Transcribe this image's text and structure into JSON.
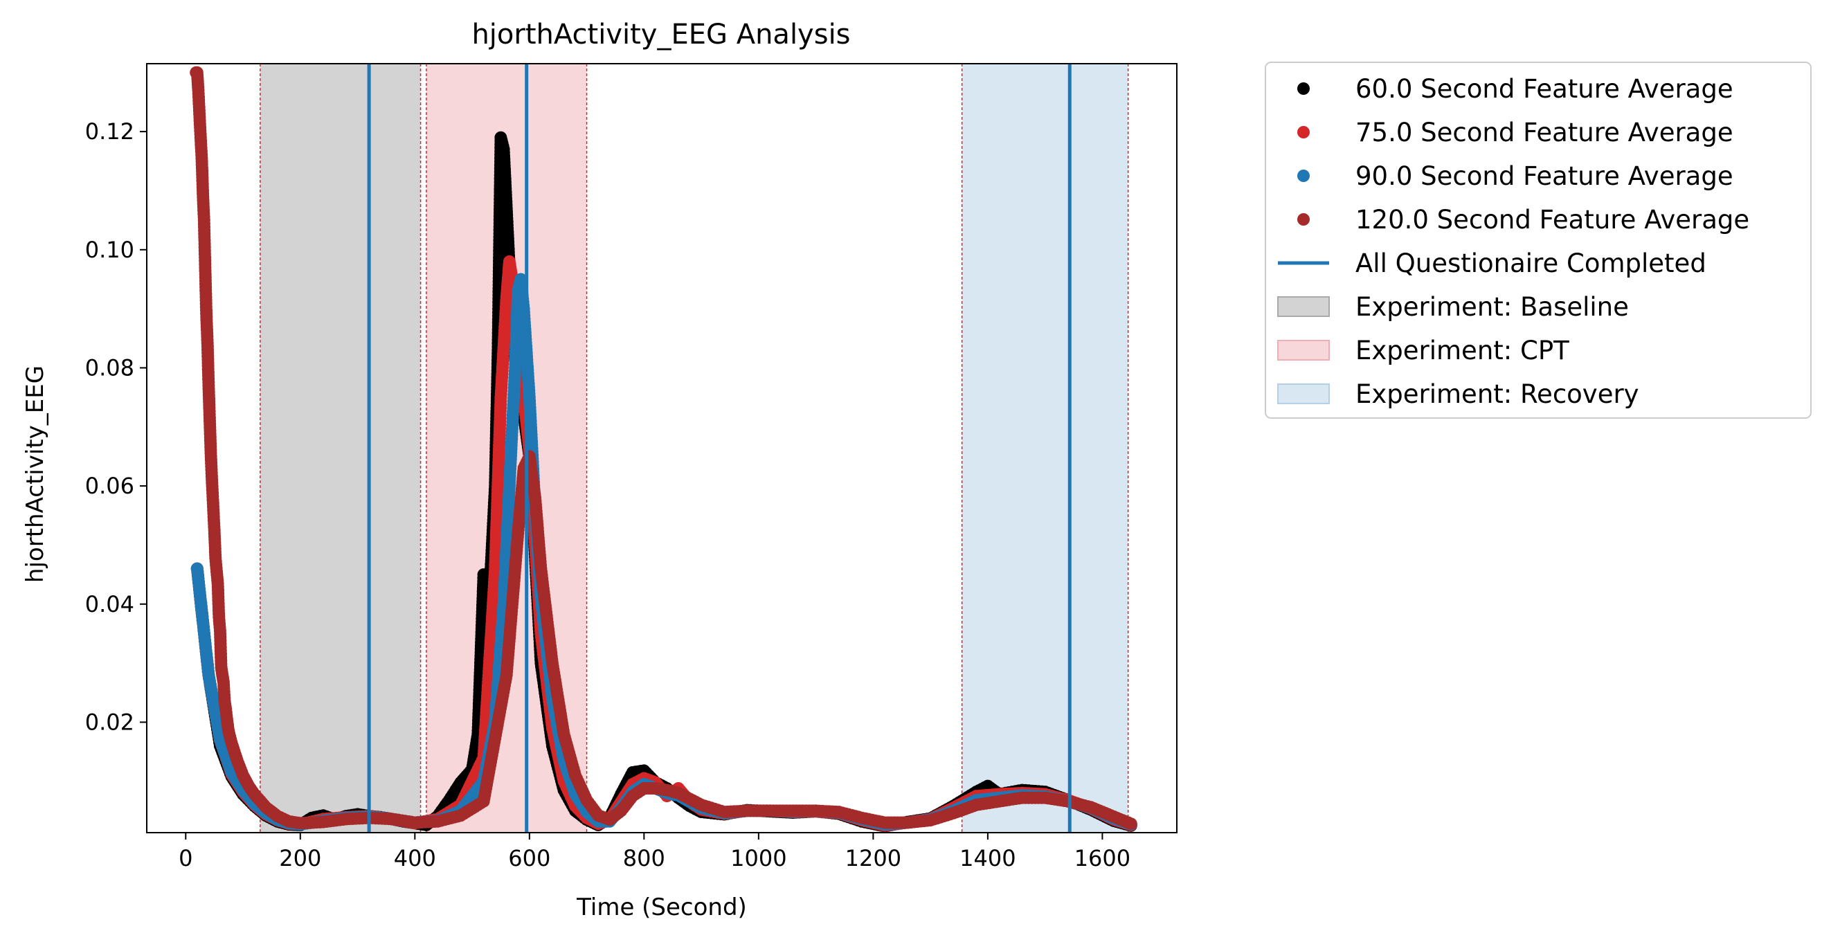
{
  "chart_data": {
    "type": "scatter",
    "title": "hjorthActivity_EEG Analysis",
    "xlabel": "Time (Second)",
    "ylabel": "hjorthActivity_EEG",
    "xlim": [
      -68,
      1730
    ],
    "ylim": [
      0.0013,
      0.1315
    ],
    "x_ticks": [
      0,
      200,
      400,
      600,
      800,
      1000,
      1200,
      1400,
      1600
    ],
    "x_tick_labels": [
      "0",
      "200",
      "400",
      "600",
      "800",
      "1000",
      "1200",
      "1400",
      "1600"
    ],
    "y_ticks": [
      0.02,
      0.04,
      0.06,
      0.08,
      0.1,
      0.12
    ],
    "y_tick_labels": [
      "0.02",
      "0.04",
      "0.06",
      "0.08",
      "0.10",
      "0.12"
    ],
    "grid": false,
    "legend_position": "outside-top-right",
    "series": [
      {
        "name": "60.0 Second Feature Average",
        "color": "#000000",
        "points": [
          [
            20,
            0.046
          ],
          [
            40,
            0.028
          ],
          [
            60,
            0.016
          ],
          [
            80,
            0.0108
          ],
          [
            100,
            0.0078
          ],
          [
            120,
            0.0058
          ],
          [
            140,
            0.0042
          ],
          [
            160,
            0.0032
          ],
          [
            180,
            0.0027
          ],
          [
            200,
            0.0026
          ],
          [
            220,
            0.0038
          ],
          [
            240,
            0.0042
          ],
          [
            260,
            0.0035
          ],
          [
            280,
            0.0041
          ],
          [
            300,
            0.0044
          ],
          [
            320,
            0.0041
          ],
          [
            340,
            0.0039
          ],
          [
            360,
            0.0036
          ],
          [
            380,
            0.0032
          ],
          [
            400,
            0.0029
          ],
          [
            420,
            0.0026
          ],
          [
            440,
            0.0041
          ],
          [
            460,
            0.0068
          ],
          [
            480,
            0.0098
          ],
          [
            500,
            0.012
          ],
          [
            510,
            0.018
          ],
          [
            520,
            0.045
          ],
          [
            530,
            0.041
          ],
          [
            540,
            0.06
          ],
          [
            545,
            0.083
          ],
          [
            550,
            0.119
          ],
          [
            555,
            0.117
          ],
          [
            560,
            0.107
          ],
          [
            570,
            0.087
          ],
          [
            580,
            0.077
          ],
          [
            590,
            0.072
          ],
          [
            600,
            0.065
          ],
          [
            610,
            0.048
          ],
          [
            620,
            0.03
          ],
          [
            640,
            0.016
          ],
          [
            660,
            0.0085
          ],
          [
            680,
            0.005
          ],
          [
            700,
            0.0035
          ],
          [
            720,
            0.0026
          ],
          [
            740,
            0.0038
          ],
          [
            760,
            0.0078
          ],
          [
            780,
            0.0115
          ],
          [
            800,
            0.0118
          ],
          [
            820,
            0.0098
          ],
          [
            840,
            0.0088
          ],
          [
            860,
            0.0072
          ],
          [
            880,
            0.0058
          ],
          [
            900,
            0.0048
          ],
          [
            940,
            0.0044
          ],
          [
            980,
            0.0051
          ],
          [
            1020,
            0.0049
          ],
          [
            1060,
            0.0047
          ],
          [
            1100,
            0.0049
          ],
          [
            1140,
            0.0045
          ],
          [
            1180,
            0.0032
          ],
          [
            1220,
            0.0024
          ],
          [
            1260,
            0.0031
          ],
          [
            1300,
            0.0037
          ],
          [
            1340,
            0.0058
          ],
          [
            1380,
            0.0082
          ],
          [
            1400,
            0.0092
          ],
          [
            1420,
            0.0078
          ],
          [
            1460,
            0.0085
          ],
          [
            1500,
            0.0082
          ],
          [
            1540,
            0.0068
          ],
          [
            1580,
            0.0052
          ],
          [
            1620,
            0.0033
          ],
          [
            1650,
            0.0025
          ]
        ]
      },
      {
        "name": "75.0 Second Feature Average",
        "color": "#d62728",
        "points": [
          [
            20,
            0.046
          ],
          [
            40,
            0.028
          ],
          [
            60,
            0.017
          ],
          [
            80,
            0.0112
          ],
          [
            100,
            0.0082
          ],
          [
            120,
            0.006
          ],
          [
            140,
            0.0044
          ],
          [
            160,
            0.0034
          ],
          [
            180,
            0.0028
          ],
          [
            200,
            0.0027
          ],
          [
            240,
            0.0036
          ],
          [
            280,
            0.0039
          ],
          [
            320,
            0.0041
          ],
          [
            360,
            0.0036
          ],
          [
            400,
            0.0029
          ],
          [
            440,
            0.0036
          ],
          [
            480,
            0.006
          ],
          [
            520,
            0.014
          ],
          [
            540,
            0.046
          ],
          [
            550,
            0.075
          ],
          [
            560,
            0.092
          ],
          [
            565,
            0.098
          ],
          [
            570,
            0.095
          ],
          [
            580,
            0.085
          ],
          [
            590,
            0.075
          ],
          [
            600,
            0.066
          ],
          [
            610,
            0.05
          ],
          [
            620,
            0.035
          ],
          [
            640,
            0.019
          ],
          [
            660,
            0.01
          ],
          [
            680,
            0.0058
          ],
          [
            700,
            0.0038
          ],
          [
            720,
            0.0028
          ],
          [
            740,
            0.0035
          ],
          [
            760,
            0.0065
          ],
          [
            780,
            0.0095
          ],
          [
            800,
            0.0105
          ],
          [
            820,
            0.0098
          ],
          [
            840,
            0.0075
          ],
          [
            860,
            0.0088
          ],
          [
            880,
            0.0065
          ],
          [
            900,
            0.0052
          ],
          [
            940,
            0.0045
          ],
          [
            980,
            0.005
          ],
          [
            1020,
            0.005
          ],
          [
            1060,
            0.0048
          ],
          [
            1100,
            0.0049
          ],
          [
            1140,
            0.0046
          ],
          [
            1180,
            0.0034
          ],
          [
            1220,
            0.0025
          ],
          [
            1260,
            0.003
          ],
          [
            1300,
            0.0036
          ],
          [
            1340,
            0.0055
          ],
          [
            1380,
            0.0075
          ],
          [
            1420,
            0.0078
          ],
          [
            1460,
            0.008
          ],
          [
            1500,
            0.0078
          ],
          [
            1540,
            0.0068
          ],
          [
            1580,
            0.0054
          ],
          [
            1620,
            0.0035
          ],
          [
            1650,
            0.0026
          ]
        ]
      },
      {
        "name": "90.0 Second Feature Average",
        "color": "#1f77b4",
        "points": [
          [
            20,
            0.046
          ],
          [
            40,
            0.028
          ],
          [
            60,
            0.017
          ],
          [
            80,
            0.0115
          ],
          [
            100,
            0.0085
          ],
          [
            120,
            0.0062
          ],
          [
            140,
            0.0046
          ],
          [
            160,
            0.0035
          ],
          [
            180,
            0.0029
          ],
          [
            200,
            0.0027
          ],
          [
            240,
            0.0033
          ],
          [
            280,
            0.0038
          ],
          [
            320,
            0.004
          ],
          [
            360,
            0.0036
          ],
          [
            400,
            0.003
          ],
          [
            440,
            0.0033
          ],
          [
            480,
            0.005
          ],
          [
            520,
            0.01
          ],
          [
            540,
            0.02
          ],
          [
            555,
            0.04
          ],
          [
            565,
            0.06
          ],
          [
            575,
            0.08
          ],
          [
            580,
            0.093
          ],
          [
            585,
            0.095
          ],
          [
            590,
            0.09
          ],
          [
            600,
            0.075
          ],
          [
            610,
            0.056
          ],
          [
            620,
            0.041
          ],
          [
            640,
            0.024
          ],
          [
            660,
            0.0135
          ],
          [
            680,
            0.0078
          ],
          [
            700,
            0.0048
          ],
          [
            720,
            0.0032
          ],
          [
            740,
            0.0032
          ],
          [
            760,
            0.0055
          ],
          [
            780,
            0.0082
          ],
          [
            800,
            0.0095
          ],
          [
            820,
            0.0088
          ],
          [
            840,
            0.008
          ],
          [
            860,
            0.0076
          ],
          [
            880,
            0.0065
          ],
          [
            900,
            0.0055
          ],
          [
            940,
            0.0046
          ],
          [
            980,
            0.005
          ],
          [
            1020,
            0.005
          ],
          [
            1060,
            0.0049
          ],
          [
            1100,
            0.005
          ],
          [
            1140,
            0.0047
          ],
          [
            1180,
            0.0036
          ],
          [
            1220,
            0.0027
          ],
          [
            1260,
            0.003
          ],
          [
            1300,
            0.0035
          ],
          [
            1340,
            0.005
          ],
          [
            1380,
            0.0068
          ],
          [
            1420,
            0.0072
          ],
          [
            1460,
            0.0076
          ],
          [
            1500,
            0.0074
          ],
          [
            1540,
            0.0066
          ],
          [
            1580,
            0.0055
          ],
          [
            1620,
            0.0037
          ],
          [
            1650,
            0.0027
          ]
        ]
      },
      {
        "name": "120.0 Second Feature Average",
        "color": "#a52a2a",
        "points": [
          [
            18,
            0.13
          ],
          [
            20,
            0.13
          ],
          [
            22,
            0.127
          ],
          [
            24,
            0.123
          ],
          [
            26,
            0.119
          ],
          [
            28,
            0.1155
          ],
          [
            30,
            0.1095
          ],
          [
            32,
            0.105
          ],
          [
            34,
            0.097
          ],
          [
            36,
            0.0892
          ],
          [
            38,
            0.0842
          ],
          [
            40,
            0.077
          ],
          [
            42,
            0.071
          ],
          [
            44,
            0.065
          ],
          [
            46,
            0.0605
          ],
          [
            48,
            0.0565
          ],
          [
            50,
            0.0525
          ],
          [
            52,
            0.0478
          ],
          [
            54,
            0.0455
          ],
          [
            56,
            0.0435
          ],
          [
            58,
            0.0378
          ],
          [
            60,
            0.0355
          ],
          [
            62,
            0.0293
          ],
          [
            64,
            0.028
          ],
          [
            66,
            0.0268
          ],
          [
            68,
            0.0235
          ],
          [
            70,
            0.0222
          ],
          [
            72,
            0.0205
          ],
          [
            74,
            0.019
          ],
          [
            76,
            0.018
          ],
          [
            80,
            0.0165
          ],
          [
            90,
            0.0135
          ],
          [
            100,
            0.011
          ],
          [
            110,
            0.0092
          ],
          [
            120,
            0.0078
          ],
          [
            140,
            0.0056
          ],
          [
            160,
            0.0041
          ],
          [
            180,
            0.0032
          ],
          [
            200,
            0.0029
          ],
          [
            240,
            0.0031
          ],
          [
            280,
            0.0036
          ],
          [
            320,
            0.0038
          ],
          [
            360,
            0.0036
          ],
          [
            400,
            0.003
          ],
          [
            440,
            0.0032
          ],
          [
            480,
            0.0042
          ],
          [
            520,
            0.0066
          ],
          [
            560,
            0.028
          ],
          [
            580,
            0.052
          ],
          [
            590,
            0.063
          ],
          [
            600,
            0.065
          ],
          [
            610,
            0.058
          ],
          [
            620,
            0.046
          ],
          [
            640,
            0.03
          ],
          [
            660,
            0.018
          ],
          [
            680,
            0.011
          ],
          [
            700,
            0.0068
          ],
          [
            720,
            0.0042
          ],
          [
            740,
            0.0035
          ],
          [
            760,
            0.005
          ],
          [
            780,
            0.0075
          ],
          [
            800,
            0.0088
          ],
          [
            820,
            0.0088
          ],
          [
            840,
            0.0085
          ],
          [
            860,
            0.008
          ],
          [
            880,
            0.007
          ],
          [
            900,
            0.006
          ],
          [
            940,
            0.0048
          ],
          [
            980,
            0.005
          ],
          [
            1020,
            0.005
          ],
          [
            1060,
            0.005
          ],
          [
            1100,
            0.005
          ],
          [
            1140,
            0.0048
          ],
          [
            1180,
            0.0038
          ],
          [
            1220,
            0.003
          ],
          [
            1260,
            0.003
          ],
          [
            1300,
            0.0034
          ],
          [
            1340,
            0.0046
          ],
          [
            1380,
            0.006
          ],
          [
            1420,
            0.0066
          ],
          [
            1460,
            0.0072
          ],
          [
            1500,
            0.0072
          ],
          [
            1540,
            0.0066
          ],
          [
            1580,
            0.0056
          ],
          [
            1620,
            0.004
          ],
          [
            1650,
            0.0028
          ]
        ]
      }
    ],
    "vertical_lines": [
      {
        "name": "All Questionaire Completed",
        "color": "#1f77b4",
        "x": [
          320,
          595,
          1543
        ]
      }
    ],
    "shaded_regions": [
      {
        "name": "Experiment: Baseline",
        "color": "#d3d3d3",
        "start": 130,
        "end": 410
      },
      {
        "name": "Experiment: CPT",
        "color": "#f8d7da",
        "start": 420,
        "end": 700
      },
      {
        "name": "Experiment: Recovery",
        "color": "#d9e7f2",
        "start": 1355,
        "end": 1645
      }
    ],
    "dashed_boundaries": {
      "color": "#d62728",
      "x": [
        130,
        410,
        420,
        700,
        1355,
        1645
      ]
    }
  }
}
